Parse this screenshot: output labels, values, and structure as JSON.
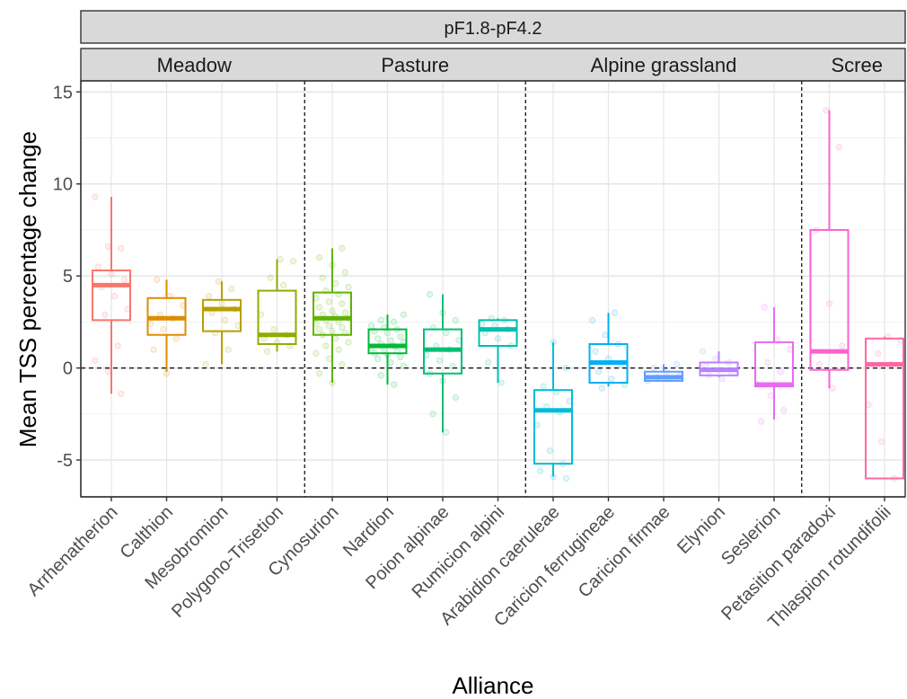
{
  "chart_data": {
    "type": "box",
    "strip_title": "pF1.8-pF4.2",
    "xlabel": "Alliance",
    "ylabel": "Mean TSS percentage change",
    "ylim": [
      -7,
      15.6
    ],
    "yticks": [
      -5,
      0,
      5,
      10,
      15
    ],
    "ytick_labels": [
      "-5",
      "0",
      "5",
      "10",
      "15"
    ],
    "grid": true,
    "reference_line_y": 0,
    "panels": [
      {
        "label": "Meadow",
        "span": [
          0,
          3
        ]
      },
      {
        "label": "Pasture",
        "span": [
          4,
          7
        ]
      },
      {
        "label": "Alpine grassland",
        "span": [
          8,
          12
        ]
      },
      {
        "label": "Scree",
        "span": [
          13,
          14
        ]
      }
    ],
    "categories": [
      "Arrhenatherion",
      "Calthion",
      "Mesobromion",
      "Polygono-Trisetion",
      "Cynosurion",
      "Nardion",
      "Poion alpinae",
      "Rumicion alpini",
      "Arabidion caeruleae",
      "Caricion ferrugineae",
      "Caricion firmae",
      "Elynion",
      "Seslerion",
      "Petasition paradoxi",
      "Thlaspion rotundifolii"
    ],
    "series": [
      {
        "category": "Arrhenatherion",
        "color": "#F8766D",
        "min": -1.4,
        "q1": 2.6,
        "median": 4.5,
        "q3": 5.3,
        "max": 9.3,
        "points": [
          9.3,
          6.6,
          6.5,
          5.5,
          5.1,
          4.8,
          4.4,
          3.9,
          3.2,
          2.9,
          1.2,
          0.4,
          -0.2,
          -1.4
        ]
      },
      {
        "category": "Calthion",
        "color": "#DE8C00",
        "min": -0.2,
        "q1": 1.8,
        "median": 2.7,
        "q3": 3.8,
        "max": 4.8,
        "points": [
          4.8,
          3.9,
          3.4,
          2.9,
          2.7,
          2.4,
          2.1,
          1.6,
          1.0,
          -0.3
        ]
      },
      {
        "category": "Mesobromion",
        "color": "#B79F00",
        "min": 0.2,
        "q1": 2.0,
        "median": 3.2,
        "q3": 3.7,
        "max": 4.7,
        "points": [
          4.7,
          4.3,
          3.9,
          3.5,
          3.2,
          3.0,
          2.6,
          2.3,
          1.9,
          1.0,
          0.2
        ]
      },
      {
        "category": "Polygono-Trisetion",
        "color": "#93AA00",
        "min": 0.9,
        "q1": 1.3,
        "median": 1.8,
        "q3": 4.2,
        "max": 5.9,
        "points": [
          5.9,
          5.8,
          4.9,
          4.5,
          2.9,
          2.1,
          1.8,
          1.6,
          1.4,
          1.2,
          0.9
        ]
      },
      {
        "category": "Cynosurion",
        "color": "#5EB300",
        "min": -0.8,
        "q1": 1.8,
        "median": 2.7,
        "q3": 4.1,
        "max": 6.5,
        "points": [
          6.5,
          6.0,
          5.6,
          5.2,
          4.9,
          4.6,
          4.4,
          4.2,
          4.0,
          3.8,
          3.6,
          3.5,
          3.3,
          3.1,
          3.0,
          2.9,
          2.8,
          2.7,
          2.6,
          2.5,
          2.4,
          2.3,
          2.2,
          2.1,
          2.0,
          1.9,
          1.8,
          1.6,
          1.4,
          1.2,
          1.0,
          0.8,
          0.5,
          0.2,
          -0.3,
          -0.8
        ]
      },
      {
        "category": "Nardion",
        "color": "#00BA38",
        "min": -0.9,
        "q1": 0.8,
        "median": 1.2,
        "q3": 2.1,
        "max": 2.9,
        "points": [
          2.9,
          2.6,
          2.5,
          2.3,
          2.2,
          2.1,
          2.0,
          1.9,
          1.7,
          1.6,
          1.5,
          1.4,
          1.3,
          1.2,
          1.1,
          1.0,
          0.9,
          0.8,
          0.7,
          0.6,
          0.5,
          0.3,
          0.1,
          -0.4,
          -0.9
        ]
      },
      {
        "category": "Poion alpinae",
        "color": "#00BF74",
        "min": -3.5,
        "q1": -0.3,
        "median": 1.0,
        "q3": 2.1,
        "max": 4.0,
        "points": [
          4.0,
          3.0,
          2.6,
          2.2,
          1.9,
          1.5,
          1.2,
          1.0,
          0.7,
          0.4,
          0.1,
          -0.3,
          -0.7,
          -1.6,
          -2.5,
          -3.5
        ]
      },
      {
        "category": "Rumicion alpini",
        "color": "#00C0AF",
        "min": -0.8,
        "q1": 1.2,
        "median": 2.1,
        "q3": 2.6,
        "max": 2.7,
        "points": [
          2.7,
          2.6,
          2.4,
          2.3,
          2.1,
          1.9,
          1.6,
          1.2,
          0.3,
          -0.8
        ]
      },
      {
        "category": "Arabidion caeruleae",
        "color": "#00BCD8",
        "min": -5.9,
        "q1": -5.2,
        "median": -2.3,
        "q3": -1.2,
        "max": 1.4,
        "points": [
          1.4,
          0.0,
          -1.0,
          -1.3,
          -1.8,
          -2.1,
          -2.4,
          -3.1,
          -4.5,
          -5.2,
          -5.6,
          -5.9,
          -6.0
        ]
      },
      {
        "category": "Caricion ferrugineae",
        "color": "#00B0F6",
        "min": -1.0,
        "q1": -0.8,
        "median": 0.3,
        "q3": 1.3,
        "max": 3.0,
        "points": [
          3.0,
          2.6,
          1.8,
          1.3,
          0.9,
          0.5,
          0.2,
          -0.2,
          -0.6,
          -0.9,
          -1.1
        ]
      },
      {
        "category": "Caricion firmae",
        "color": "#619CFF",
        "min": -0.7,
        "q1": -0.7,
        "median": -0.5,
        "q3": -0.2,
        "max": 0.2,
        "points": [
          0.2,
          0.0,
          -0.2,
          -0.4,
          -0.5,
          -0.6,
          -0.7
        ]
      },
      {
        "category": "Elynion",
        "color": "#B983FF",
        "min": -0.5,
        "q1": -0.4,
        "median": -0.1,
        "q3": 0.3,
        "max": 0.9,
        "points": [
          0.9,
          0.5,
          0.3,
          0.1,
          -0.1,
          -0.3,
          -0.4,
          -0.6
        ]
      },
      {
        "category": "Seslerion",
        "color": "#E76BF3",
        "min": -2.8,
        "q1": -1.0,
        "median": -0.9,
        "q3": 1.4,
        "max": 3.3,
        "points": [
          3.3,
          1.5,
          1.0,
          0.3,
          -0.2,
          -0.9,
          -1.5,
          -2.3,
          -2.9
        ]
      },
      {
        "category": "Petasition paradoxi",
        "color": "#FD61D1",
        "min": -1.1,
        "q1": -0.1,
        "median": 0.9,
        "q3": 7.5,
        "max": 14.0,
        "points": [
          14.0,
          12.0,
          7.5,
          3.5,
          1.2,
          0.2,
          -1.1
        ]
      },
      {
        "category": "Thlaspion rotundifolii",
        "color": "#FF67A4",
        "min": -6.0,
        "q1": -6.0,
        "median": 0.2,
        "q3": 1.6,
        "max": 1.7,
        "points": [
          1.7,
          1.5,
          0.8,
          0.2,
          -2.0,
          -4.0,
          -6.0
        ]
      }
    ]
  }
}
